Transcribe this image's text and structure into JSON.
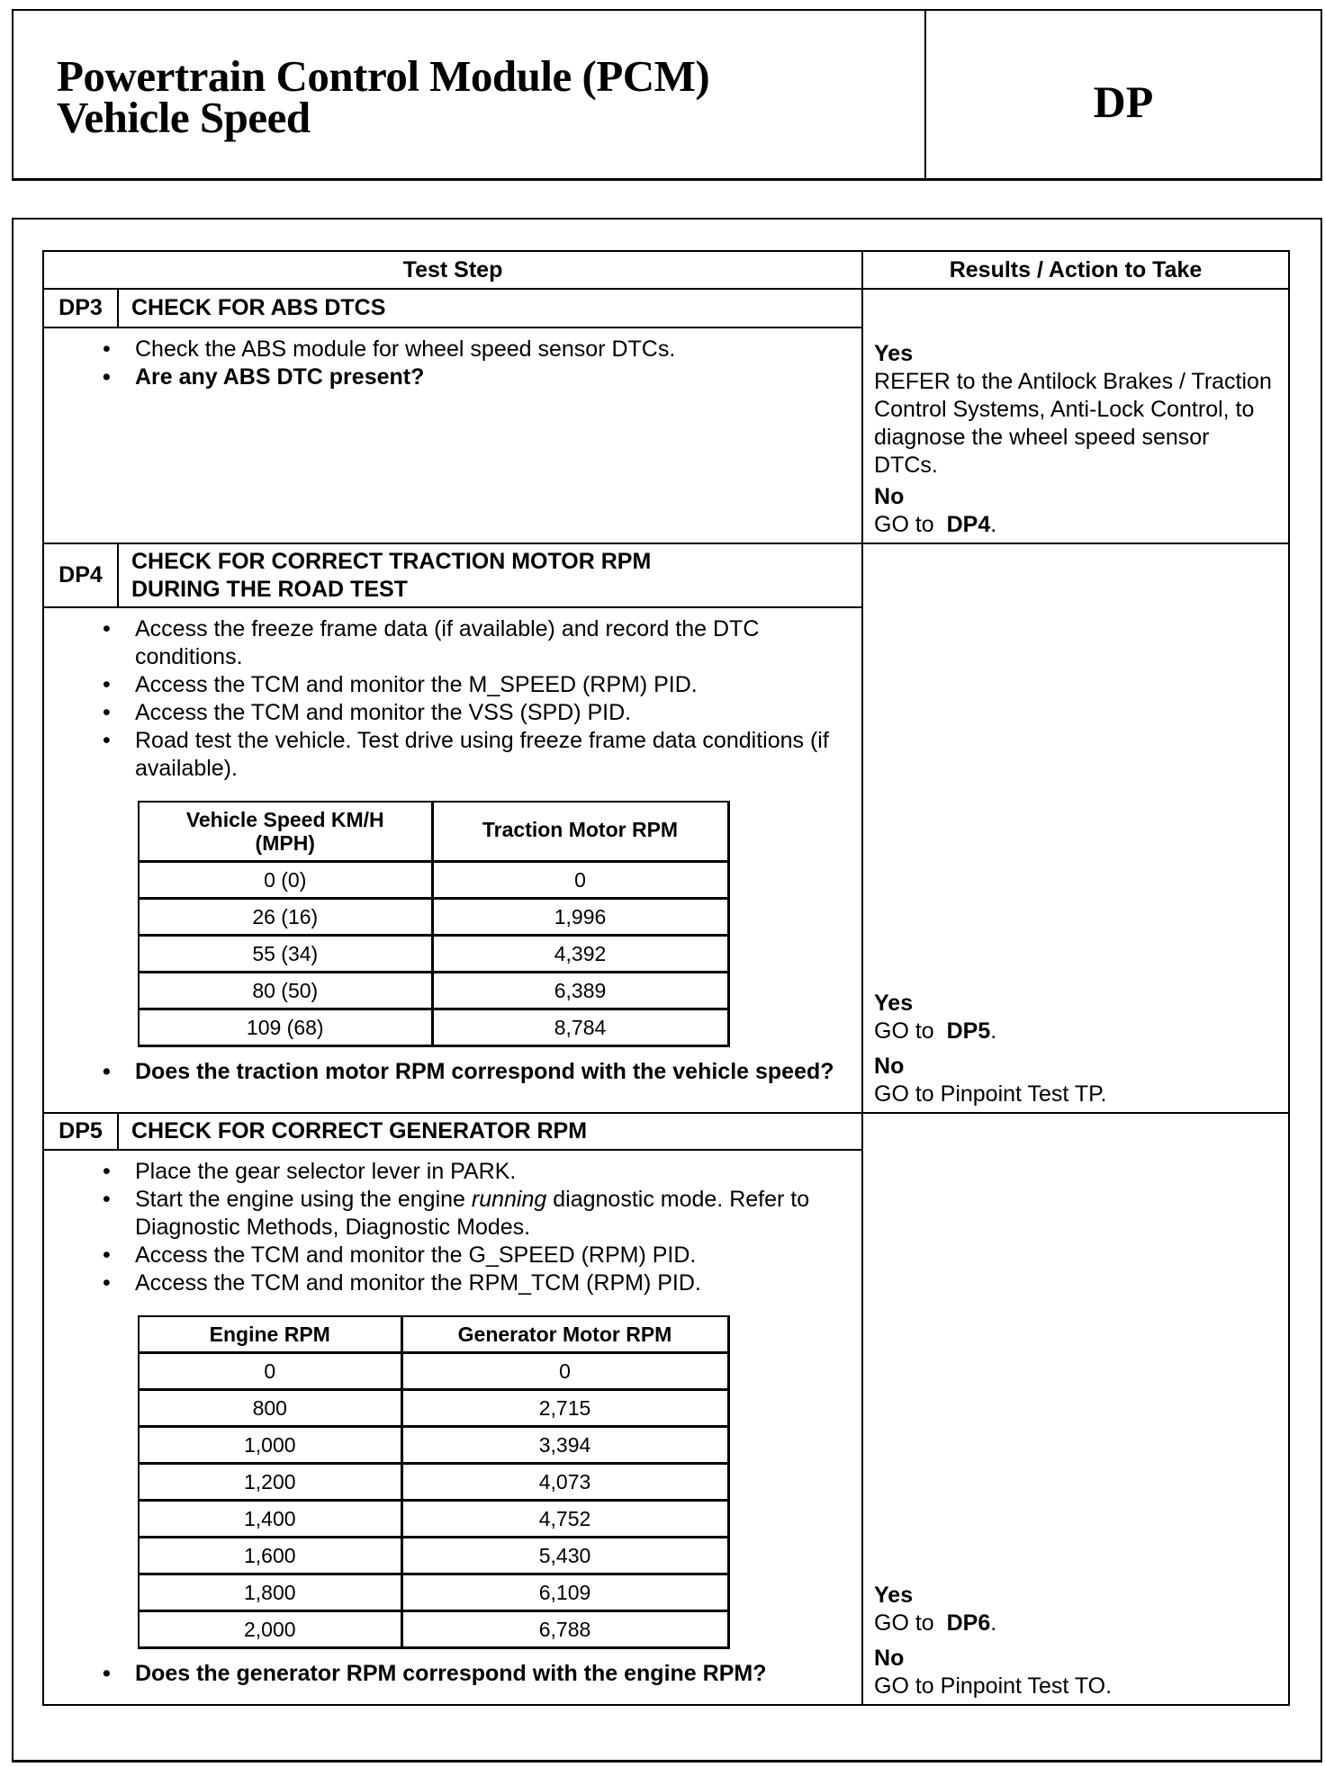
{
  "header": {
    "title_line1": "Powertrain Control Module (PCM)",
    "title_line2": "Vehicle Speed",
    "code": "DP"
  },
  "table": {
    "col_test_step": "Test Step",
    "col_results": "Results / Action to Take"
  },
  "dp3": {
    "num": "DP3",
    "title": "CHECK FOR ABS DTCS",
    "bullets": [
      "Check the ABS module for wheel speed sensor DTCs."
    ],
    "question": "Are any ABS DTC present?",
    "yes": "Yes",
    "yes_action": "REFER to the Antilock Brakes / Traction Control Systems, Anti-Lock Control, to diagnose the wheel speed sensor DTCs.",
    "no": "No",
    "no_prefix": "GO to",
    "no_target": "DP4",
    "no_suffix": "."
  },
  "dp4": {
    "num": "DP4",
    "title": "CHECK FOR CORRECT TRACTION MOTOR RPM DURING THE ROAD TEST",
    "bullets": [
      "Access the freeze frame data (if available) and record the DTC conditions.",
      "Access the TCM and monitor the M_SPEED (RPM) PID.",
      "Access the TCM and monitor the VSS (SPD) PID.",
      "Road test the vehicle. Test drive using freeze frame data conditions (if available)."
    ],
    "table": {
      "headers": [
        "Vehicle Speed KM/H (MPH)",
        "Traction Motor RPM"
      ],
      "rows": [
        [
          "0 (0)",
          "0"
        ],
        [
          "26 (16)",
          "1,996"
        ],
        [
          "55 (34)",
          "4,392"
        ],
        [
          "80 (50)",
          "6,389"
        ],
        [
          "109 (68)",
          "8,784"
        ]
      ]
    },
    "question": "Does the traction motor RPM correspond with the vehicle speed?",
    "yes": "Yes",
    "yes_prefix": "GO to",
    "yes_target": "DP5",
    "yes_suffix": ".",
    "no": "No",
    "no_action": "GO to Pinpoint Test TP."
  },
  "dp5": {
    "num": "DP5",
    "title": "CHECK FOR CORRECT GENERATOR RPM",
    "bullet1": "Place the gear selector lever in PARK.",
    "bullet2_a": "Start the engine using the engine ",
    "bullet2_italic": "running",
    "bullet2_b": " diagnostic mode. Refer to Diagnostic Methods, Diagnostic Modes.",
    "bullet3": "Access the TCM and monitor the G_SPEED (RPM) PID.",
    "bullet4": "Access the TCM and monitor the RPM_TCM (RPM) PID.",
    "table": {
      "headers": [
        "Engine RPM",
        "Generator Motor RPM"
      ],
      "rows": [
        [
          "0",
          "0"
        ],
        [
          "800",
          "2,715"
        ],
        [
          "1,000",
          "3,394"
        ],
        [
          "1,200",
          "4,073"
        ],
        [
          "1,400",
          "4,752"
        ],
        [
          "1,600",
          "5,430"
        ],
        [
          "1,800",
          "6,109"
        ],
        [
          "2,000",
          "6,788"
        ]
      ]
    },
    "question": "Does the generator RPM correspond with the engine RPM?",
    "yes": "Yes",
    "yes_prefix": "GO to",
    "yes_target": "DP6",
    "yes_suffix": ".",
    "no": "No",
    "no_action": "GO to Pinpoint Test TO."
  }
}
